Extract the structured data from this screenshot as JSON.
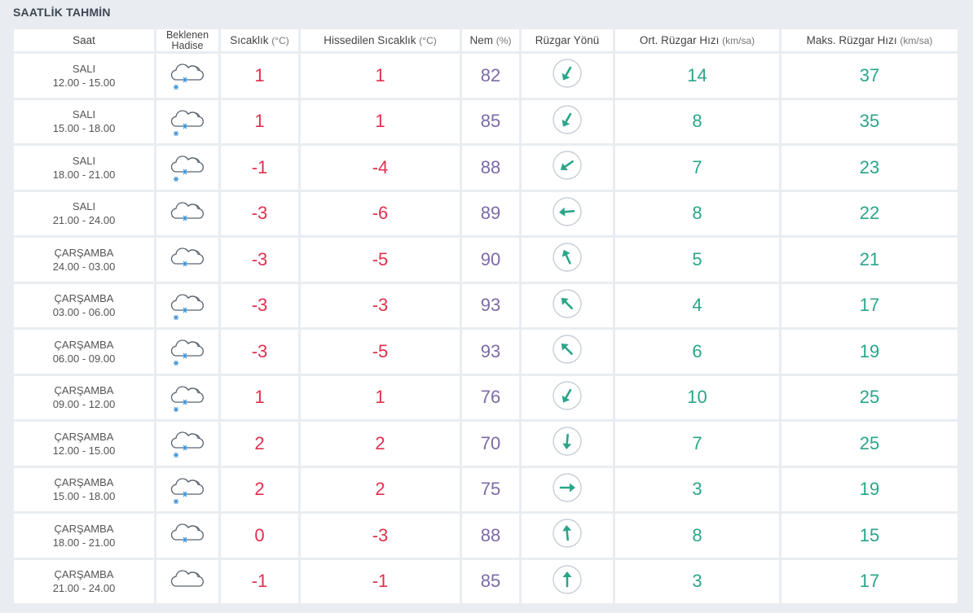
{
  "title": "SAATLİK TAHMİN",
  "headers": {
    "saat": "Saat",
    "hadise_line1": "Beklenen",
    "hadise_line2": "Hadise",
    "sicaklik": "Sıcaklık",
    "sicaklik_unit": "(°C)",
    "hissedilen": "Hissedilen Sıcaklık",
    "hissedilen_unit": "(°C)",
    "nem": "Nem",
    "nem_unit": "(%)",
    "ruzgar_yonu": "Rüzgar Yönü",
    "ort_ruzgar": "Ort. Rüzgar Hızı",
    "ort_ruzgar_unit": "(km/sa)",
    "maks_ruzgar": "Maks. Rüzgar Hızı",
    "maks_ruzgar_unit": "(km/sa)"
  },
  "colors": {
    "temp": "#e0304e",
    "humidity": "#7d6aa7",
    "wind": "#2aa58a",
    "icon_cloud": "#5a6470",
    "icon_snow": "#3a8fd6"
  },
  "rows": [
    {
      "day": "SALI",
      "time": "12.00 - 15.00",
      "icon": "cloud-snow-icon",
      "temp": "1",
      "feels": "1",
      "humidity": "82",
      "wind_dir_deg": 30,
      "wind_avg": "14",
      "wind_max": "37"
    },
    {
      "day": "SALI",
      "time": "15.00 - 18.00",
      "icon": "cloud-snow-icon",
      "temp": "1",
      "feels": "1",
      "humidity": "85",
      "wind_dir_deg": 30,
      "wind_avg": "8",
      "wind_max": "35"
    },
    {
      "day": "SALI",
      "time": "18.00 - 21.00",
      "icon": "cloud-snow-icon",
      "temp": "-1",
      "feels": "-4",
      "humidity": "88",
      "wind_dir_deg": 55,
      "wind_avg": "7",
      "wind_max": "23"
    },
    {
      "day": "SALI",
      "time": "21.00 - 24.00",
      "icon": "cloud-light-snow-icon",
      "temp": "-3",
      "feels": "-6",
      "humidity": "89",
      "wind_dir_deg": 85,
      "wind_avg": "8",
      "wind_max": "22"
    },
    {
      "day": "ÇARŞAMBA",
      "time": "24.00 - 03.00",
      "icon": "cloud-light-snow-icon",
      "temp": "-3",
      "feels": "-5",
      "humidity": "90",
      "wind_dir_deg": 155,
      "wind_avg": "5",
      "wind_max": "21"
    },
    {
      "day": "ÇARŞAMBA",
      "time": "03.00 - 06.00",
      "icon": "cloud-snow-icon",
      "temp": "-3",
      "feels": "-3",
      "humidity": "93",
      "wind_dir_deg": 135,
      "wind_avg": "4",
      "wind_max": "17"
    },
    {
      "day": "ÇARŞAMBA",
      "time": "06.00 - 09.00",
      "icon": "cloud-snow-icon",
      "temp": "-3",
      "feels": "-5",
      "humidity": "93",
      "wind_dir_deg": 135,
      "wind_avg": "6",
      "wind_max": "19"
    },
    {
      "day": "ÇARŞAMBA",
      "time": "09.00 - 12.00",
      "icon": "cloud-snow-icon",
      "temp": "1",
      "feels": "1",
      "humidity": "76",
      "wind_dir_deg": 30,
      "wind_avg": "10",
      "wind_max": "25"
    },
    {
      "day": "ÇARŞAMBA",
      "time": "12.00 - 15.00",
      "icon": "cloud-snow-icon",
      "temp": "2",
      "feels": "2",
      "humidity": "70",
      "wind_dir_deg": 5,
      "wind_avg": "7",
      "wind_max": "25"
    },
    {
      "day": "ÇARŞAMBA",
      "time": "15.00 - 18.00",
      "icon": "cloud-snow-icon",
      "temp": "2",
      "feels": "2",
      "humidity": "75",
      "wind_dir_deg": 270,
      "wind_avg": "3",
      "wind_max": "19"
    },
    {
      "day": "ÇARŞAMBA",
      "time": "18.00 - 21.00",
      "icon": "cloud-light-snow-icon",
      "temp": "0",
      "feels": "-3",
      "humidity": "88",
      "wind_dir_deg": 175,
      "wind_avg": "8",
      "wind_max": "15"
    },
    {
      "day": "ÇARŞAMBA",
      "time": "21.00 - 24.00",
      "icon": "cloud-icon",
      "temp": "-1",
      "feels": "-1",
      "humidity": "85",
      "wind_dir_deg": 180,
      "wind_avg": "3",
      "wind_max": "17"
    }
  ]
}
